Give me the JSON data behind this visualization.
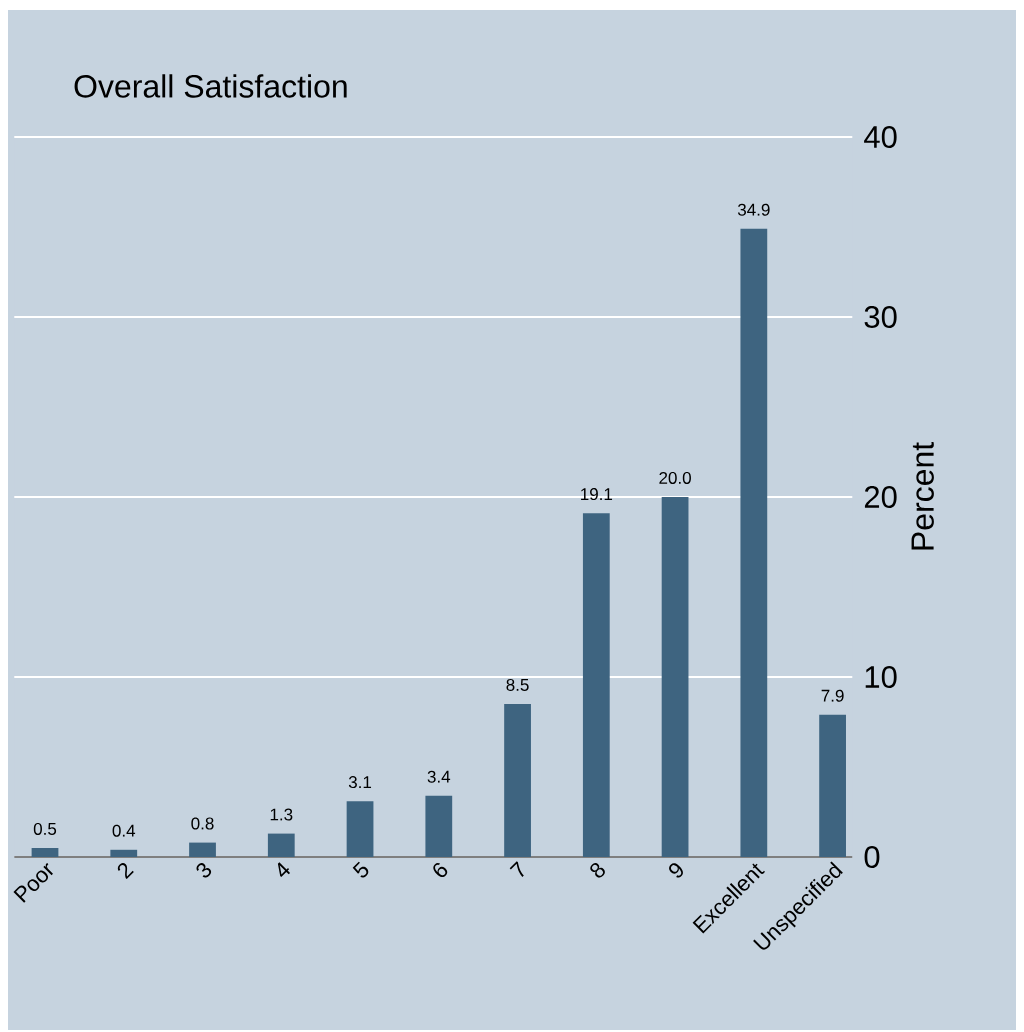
{
  "chart_data": {
    "type": "bar",
    "title": "Overall Satisfaction",
    "ylabel": "Percent",
    "categories": [
      "Poor",
      "2",
      "3",
      "4",
      "5",
      "6",
      "7",
      "8",
      "9",
      "Excellent",
      "Unspecified"
    ],
    "values": [
      0.5,
      0.4,
      0.8,
      1.3,
      3.1,
      3.4,
      8.5,
      19.1,
      20.0,
      34.9,
      7.9
    ],
    "value_labels": [
      "0.5",
      "0.4",
      "0.8",
      "1.3",
      "3.1",
      "3.4",
      "8.5",
      "19.1",
      "20.0",
      "34.9",
      "7.9"
    ],
    "color": "#3e6480",
    "ylim": [
      0,
      40
    ],
    "yticks": [
      0,
      10,
      20,
      30,
      40
    ],
    "grid": "y"
  }
}
